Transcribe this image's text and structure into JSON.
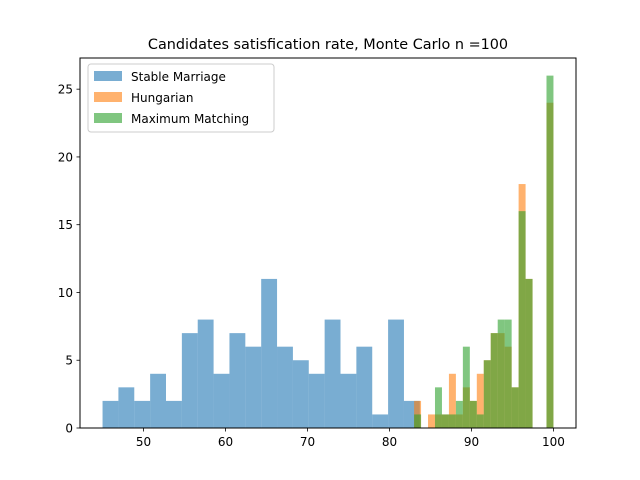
{
  "chart_data": {
    "type": "bar",
    "title": "Candidates satisfication rate, Monte Carlo n =100",
    "xlabel": "",
    "ylabel": "",
    "xlim": [
      42.25,
      102.75
    ],
    "ylim": [
      0,
      27.3
    ],
    "xticks": [
      50,
      60,
      70,
      80,
      90,
      100
    ],
    "yticks": [
      0,
      5,
      10,
      15,
      20,
      25
    ],
    "grid": false,
    "legend_position": "upper left",
    "series": [
      {
        "name": "Stable Marriage",
        "color": "#1f77b4",
        "opacity": 0.6,
        "bin_start": 45,
        "bin_width": 1.935,
        "counts": [
          2,
          3,
          2,
          4,
          2,
          7,
          8,
          4,
          7,
          6,
          11,
          6,
          5,
          4,
          8,
          4,
          6,
          1,
          8,
          2
        ]
      },
      {
        "name": "Hungarian",
        "color": "#ff7f0e",
        "opacity": 0.6,
        "bin_start": 83,
        "bin_width": 0.85,
        "counts": [
          2,
          0,
          1,
          1,
          1,
          4,
          1,
          3,
          2,
          4,
          5,
          7,
          7,
          6,
          3,
          18,
          11,
          0,
          0,
          24
        ]
      },
      {
        "name": "Maximum Matching",
        "color": "#2ca02c",
        "opacity": 0.6,
        "bin_start": 83,
        "bin_width": 0.85,
        "counts": [
          1,
          0,
          0,
          3,
          1,
          1,
          2,
          6,
          2,
          1,
          5,
          7,
          8,
          8,
          3,
          16,
          11,
          0,
          0,
          26
        ]
      }
    ]
  }
}
